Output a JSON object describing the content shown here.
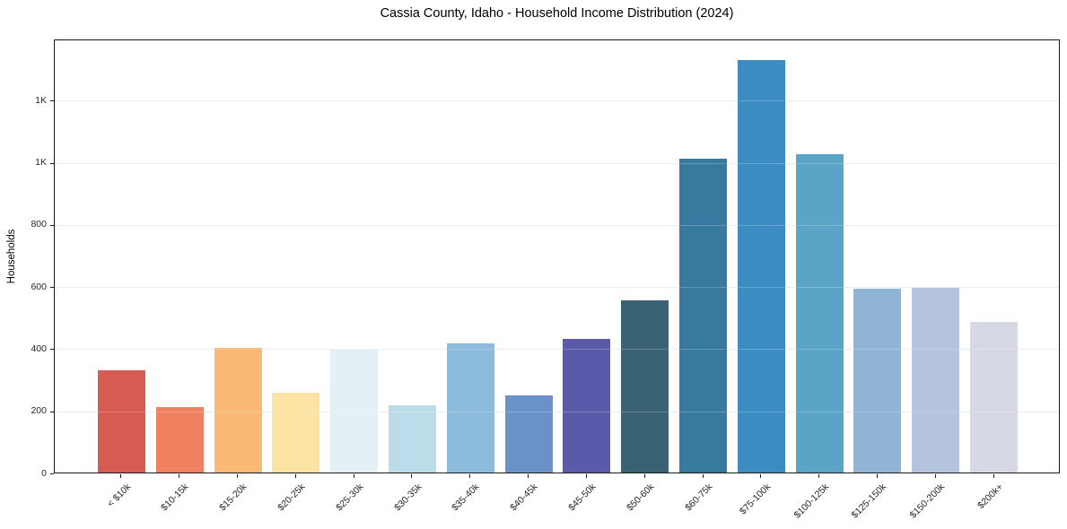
{
  "chart_data": {
    "type": "bar",
    "title": "Cassia County, Idaho - Household Income Distribution (2024)",
    "xlabel": "",
    "ylabel": "Households",
    "categories": [
      "< $10k",
      "$10-15k",
      "$15-20k",
      "$20-25k",
      "$25-30k",
      "$30-35k",
      "$35-40k",
      "$40-45k",
      "$45-50k",
      "$50-60k",
      "$60-75k",
      "$75-100k",
      "$100-125k",
      "$125-150k",
      "$150-200k",
      "$200k+"
    ],
    "values": [
      330,
      212,
      400,
      258,
      397,
      216,
      417,
      248,
      430,
      554,
      1011,
      1327,
      1025,
      592,
      596,
      485
    ],
    "bar_colors": [
      "#d65c53",
      "#f08160",
      "#fab876",
      "#fbe3a3",
      "#e3f0f6",
      "#bcdcea",
      "#8dbbdb",
      "#6a92c8",
      "#5a59aa",
      "#3a6275",
      "#37799f",
      "#3a8cc1",
      "#5aa4c8",
      "#90b4d6",
      "#b4c4dd",
      "#d6d8e5"
    ],
    "ylim": [
      0,
      1397
    ],
    "yticks": [
      {
        "value": 0,
        "label": "0"
      },
      {
        "value": 200,
        "label": "200"
      },
      {
        "value": 400,
        "label": "400"
      },
      {
        "value": 600,
        "label": "600"
      },
      {
        "value": 800,
        "label": "800"
      },
      {
        "value": 1000,
        "label": "1K"
      },
      {
        "value": 1200,
        "label": "1K"
      }
    ],
    "grid": "horizontal",
    "legend": "none",
    "background": "#ffffff",
    "spine_color": "#1a1a1a",
    "gridline_color": "#e8e8e8"
  }
}
